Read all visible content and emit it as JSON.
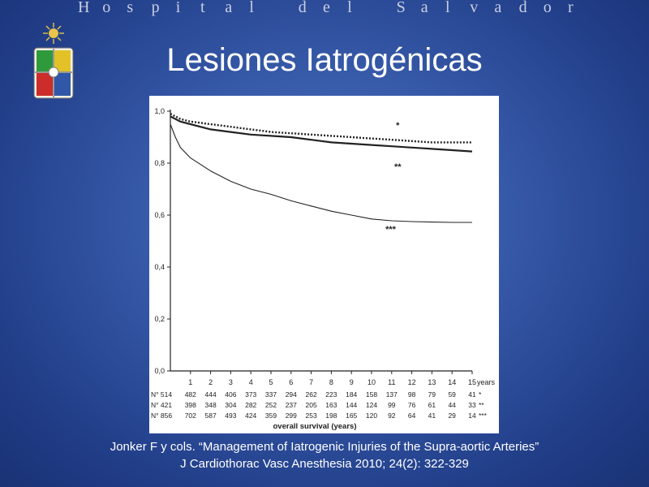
{
  "header": {
    "text": "Hospital del Salvador"
  },
  "slide": {
    "title": "Lesiones Iatrogénicas"
  },
  "citation": {
    "line1": "Jonker F y cols. “Management of Iatrogenic Injuries of the Supra-aortic Arteries”",
    "line2": "J Cardiothorac Vasc Anesthesia 2010; 24(2): 322-329"
  },
  "logo": {
    "icon": "university-coat-of-arms-icon"
  },
  "colors": {
    "background": "#3659a8",
    "text": "#ffffff",
    "plot_bg": "#ffffff",
    "ink": "#222222"
  },
  "chart_data": {
    "type": "line",
    "xlabel": "overall survival (years)",
    "x_unit_label": "years",
    "ylim": [
      0,
      1.0
    ],
    "xlim": [
      0,
      15
    ],
    "y_ticks": [
      "0,0",
      "0,2",
      "0,4",
      "0,6",
      "0,8",
      "1,0"
    ],
    "x_ticks": [
      "1",
      "2",
      "3",
      "4",
      "5",
      "6",
      "7",
      "8",
      "9",
      "10",
      "11",
      "12",
      "13",
      "14",
      "15"
    ],
    "series": [
      {
        "marker": "*",
        "style": "dotted",
        "x": [
          0,
          0.5,
          1,
          2,
          3,
          4,
          5,
          6,
          7,
          8,
          9,
          10,
          11,
          12,
          13,
          14,
          15
        ],
        "y": [
          0.99,
          0.97,
          0.96,
          0.95,
          0.94,
          0.93,
          0.92,
          0.915,
          0.91,
          0.905,
          0.9,
          0.895,
          0.89,
          0.885,
          0.88,
          0.88,
          0.88
        ]
      },
      {
        "marker": "**",
        "style": "solid-thick",
        "x": [
          0,
          0.5,
          1,
          2,
          3,
          4,
          5,
          6,
          7,
          8,
          9,
          10,
          11,
          12,
          13,
          14,
          15
        ],
        "y": [
          0.98,
          0.96,
          0.95,
          0.93,
          0.92,
          0.91,
          0.905,
          0.9,
          0.89,
          0.88,
          0.875,
          0.87,
          0.865,
          0.86,
          0.855,
          0.85,
          0.845
        ]
      },
      {
        "marker": "***",
        "style": "solid-thin",
        "x": [
          0,
          0.25,
          0.5,
          1,
          2,
          3,
          4,
          5,
          6,
          7,
          8,
          9,
          10,
          11,
          12,
          13,
          14,
          15
        ],
        "y": [
          0.95,
          0.9,
          0.86,
          0.82,
          0.77,
          0.73,
          0.7,
          0.68,
          0.655,
          0.635,
          0.615,
          0.6,
          0.585,
          0.578,
          0.575,
          0.573,
          0.572,
          0.572
        ]
      }
    ],
    "at_risk": [
      {
        "label": "N° 514",
        "values": [
          "482",
          "444",
          "406",
          "373",
          "337",
          "294",
          "262",
          "223",
          "184",
          "158",
          "137",
          "98",
          "79",
          "59",
          "41"
        ],
        "marker": "*"
      },
      {
        "label": "N° 421",
        "values": [
          "398",
          "348",
          "304",
          "282",
          "252",
          "237",
          "205",
          "163",
          "144",
          "124",
          "99",
          "76",
          "61",
          "44",
          "33"
        ],
        "marker": "**"
      },
      {
        "label": "N° 856",
        "values": [
          "702",
          "587",
          "493",
          "424",
          "359",
          "299",
          "253",
          "198",
          "165",
          "120",
          "92",
          "64",
          "41",
          "29",
          "14"
        ],
        "marker": "***"
      }
    ]
  }
}
